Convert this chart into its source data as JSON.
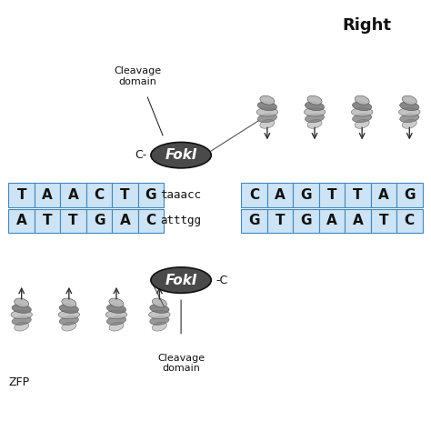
{
  "title": "Right",
  "bg_color": "#ffffff",
  "dna_top_left": [
    "T",
    "A",
    "A",
    "C",
    "T",
    "G"
  ],
  "dna_bot_left": [
    "A",
    "T",
    "T",
    "G",
    "A",
    "C"
  ],
  "dna_top_right": [
    "C",
    "A",
    "G",
    "T",
    "T",
    "A",
    "G"
  ],
  "dna_bot_right": [
    "G",
    "T",
    "G",
    "A",
    "A",
    "T",
    "C"
  ],
  "dna_mid_top": "taaacc",
  "dna_mid_bot": "atttgg",
  "fokl_label": "FokI",
  "cleavage_label_top": "Cleavage\ndomain",
  "cleavage_label_bot": "Cleavage\ndomain",
  "c_minus_top": "C-",
  "c_minus_bot": "-C",
  "zfp_label": "ZFP",
  "cell_bg": "#cce4f5",
  "cell_border": "#4488bb",
  "fokl_bg": "#4a4a4a",
  "fokl_text_color": "#ffffff",
  "arrow_color": "#333333",
  "text_color": "#111111",
  "font_size_dna": 11,
  "font_size_label": 8,
  "font_size_title": 13,
  "font_size_fokl": 11,
  "font_size_mid": 9
}
